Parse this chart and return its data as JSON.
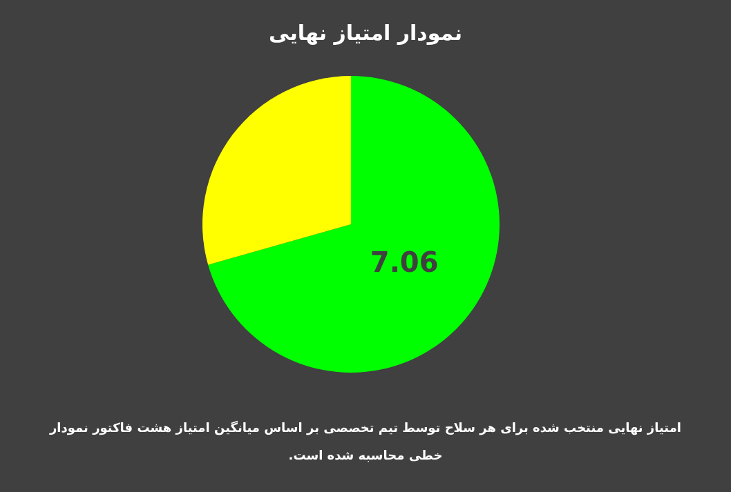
{
  "chart_data": {
    "type": "pie",
    "title": "نمودار امتیاز نهایی",
    "categories": [
      null,
      null
    ],
    "values": [
      7.06,
      2.94
    ],
    "colors": [
      "#00ff00",
      "#ffff00"
    ],
    "value_labels": [
      "7.06",
      null
    ],
    "annotations": [
      "امتیاز نهایی منتخب شده برای هر سلاح توسط تیم تخصصی بر اساس میانگین امتیاز هشت فاکتور نمودار خطی محاسبه شده است."
    ]
  }
}
